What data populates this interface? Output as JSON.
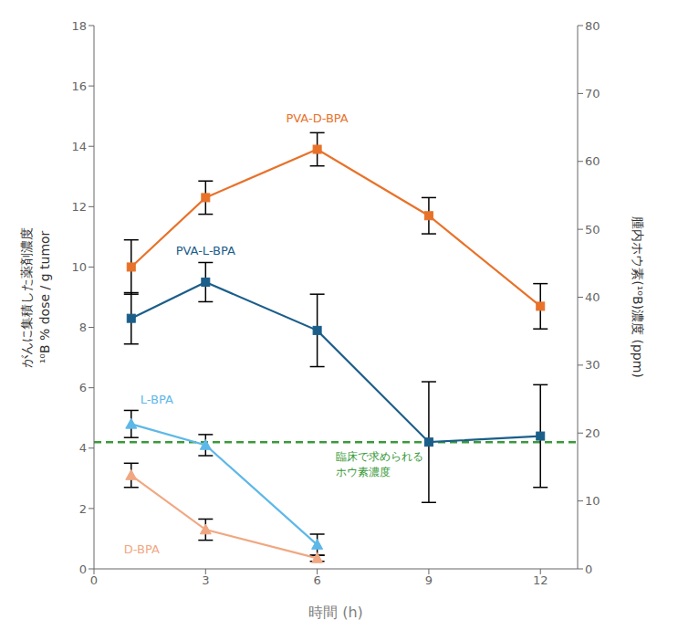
{
  "chart_data": {
    "type": "line",
    "xlabel": "時間 (h)",
    "ylabel": [
      "がんに集積した薬剤濃度",
      "¹⁰B % dose / g tumor"
    ],
    "y2label": "腫内ホウ素(¹⁰B)濃度 (ppm)",
    "xlim": [
      0,
      13
    ],
    "xticks": [
      0,
      3,
      6,
      9,
      12
    ],
    "ylim": [
      0,
      18.0
    ],
    "yticks": [
      0,
      2,
      4,
      6,
      8,
      10,
      12,
      14,
      16,
      18
    ],
    "y2lim": [
      0,
      80
    ],
    "y2ticks": [
      0,
      10,
      20,
      30,
      40,
      50,
      60,
      70,
      80
    ],
    "grid": false,
    "series": [
      {
        "name": "PVA-D-BPA",
        "color": "#E8722A",
        "marker": "square",
        "line_style": "solid",
        "x": [
          1,
          3,
          6,
          9,
          12
        ],
        "values": [
          10.0,
          12.3,
          13.9,
          11.7,
          8.7
        ],
        "yerr": [
          0.9,
          0.55,
          0.55,
          0.6,
          0.75
        ]
      },
      {
        "name": "PVA-L-BPA",
        "color": "#1B5E8A",
        "marker": "square",
        "line_style": "solid",
        "x": [
          1,
          3,
          6,
          9,
          12
        ],
        "values": [
          8.3,
          9.5,
          7.9,
          4.2,
          4.4
        ],
        "yerr": [
          0.85,
          0.65,
          1.2,
          2.0,
          1.7
        ]
      },
      {
        "name": "L-BPA",
        "color": "#5DB8E8",
        "marker": "triangle",
        "line_style": "solid",
        "x": [
          1,
          3,
          6
        ],
        "values": [
          4.8,
          4.1,
          0.8
        ],
        "yerr": [
          0.45,
          0.35,
          0.35
        ]
      },
      {
        "name": "D-BPA",
        "color": "#F0A882",
        "marker": "triangle",
        "line_style": "solid",
        "x": [
          1,
          3,
          6
        ],
        "values": [
          3.1,
          1.3,
          0.35
        ],
        "yerr": [
          0.4,
          0.35,
          0.1
        ]
      }
    ],
    "reference_lines": [
      {
        "y": 4.2,
        "color": "#3A9A3A",
        "line_style": "dashed",
        "label": [
          "臨床で求められる",
          "ホウ素濃度"
        ]
      }
    ]
  }
}
